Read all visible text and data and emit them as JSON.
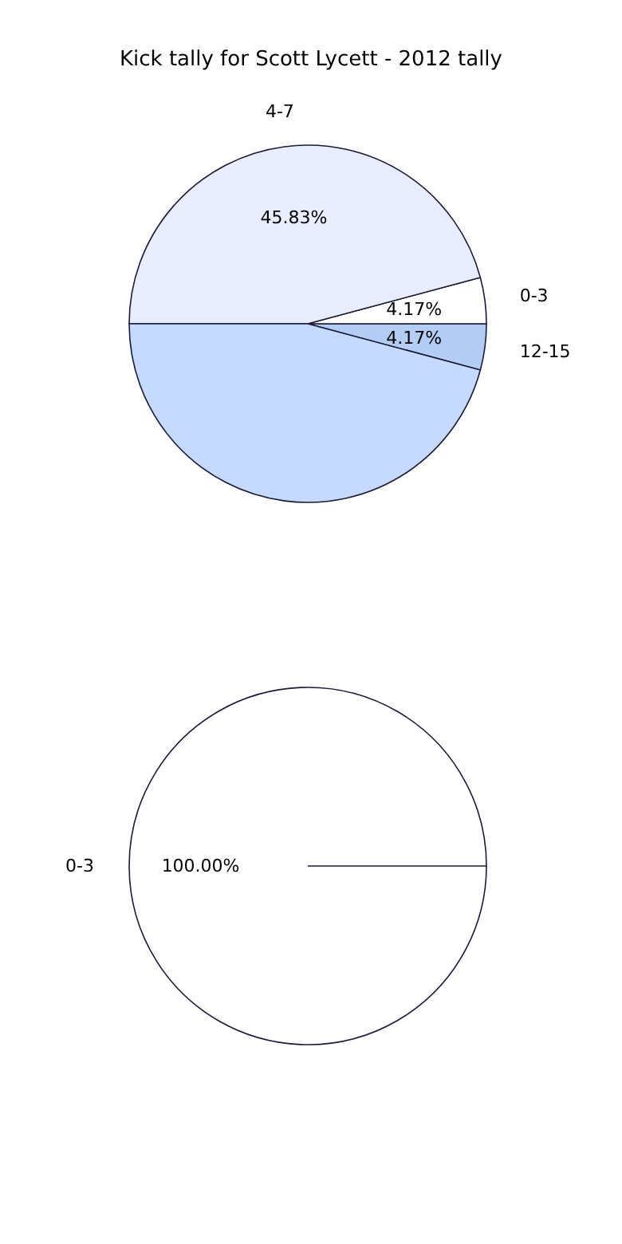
{
  "chart_data": [
    {
      "type": "pie",
      "title": "Kick tally for Scott Lycett - 2012 tally",
      "categories": [
        "12-15",
        "0-3",
        "4-7",
        null
      ],
      "values": [
        4.17,
        4.17,
        45.83,
        45.83
      ],
      "colors": [
        "#b3cdf5",
        "#ffffff",
        "#e8eeff",
        "#c6d9ff"
      ],
      "value_labels": [
        "4.17%",
        "4.17%",
        "45.83%",
        null
      ]
    },
    {
      "type": "pie",
      "categories": [
        "0-3"
      ],
      "values": [
        100
      ],
      "colors": [
        "#ffffff"
      ],
      "value_labels": [
        "100.00%"
      ]
    }
  ]
}
